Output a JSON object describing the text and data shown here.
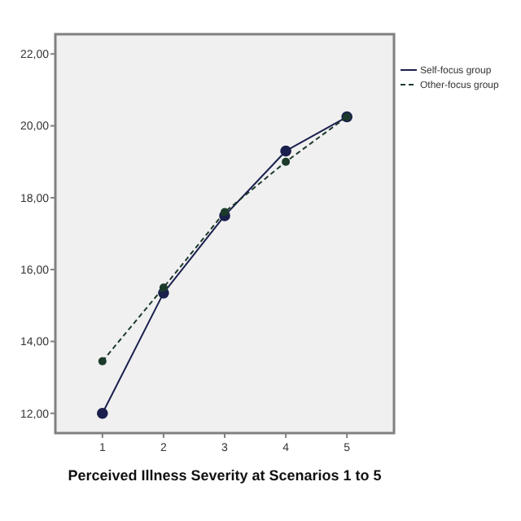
{
  "chart_data": {
    "type": "line",
    "xlabel": "Perceived Illness Severity at Scenarios 1 to 5",
    "x": [
      1,
      2,
      3,
      4,
      5
    ],
    "series": [
      {
        "name": "Self-focus group",
        "color": "#1a1f4d",
        "line_style": "solid",
        "values": [
          12.0,
          15.35,
          17.5,
          19.3,
          20.25
        ]
      },
      {
        "name": "Other-focus group",
        "color": "#1c3a2a",
        "line_style": "dashed",
        "values": [
          13.45,
          15.5,
          17.6,
          19.0,
          20.25
        ]
      }
    ],
    "xlim": [
      0.23,
      5.77
    ],
    "xticks": [
      1,
      2,
      3,
      4,
      5
    ],
    "ylim": [
      11.45,
      22.55
    ],
    "yticks": [
      {
        "value": 12,
        "label": "12,00"
      },
      {
        "value": 14,
        "label": "14,00"
      },
      {
        "value": 16,
        "label": "16,00"
      },
      {
        "value": 18,
        "label": "18,00"
      },
      {
        "value": 20,
        "label": "20,00"
      },
      {
        "value": 22,
        "label": "22,00"
      }
    ],
    "grid": false,
    "legend": "top right",
    "marker": "circle"
  }
}
